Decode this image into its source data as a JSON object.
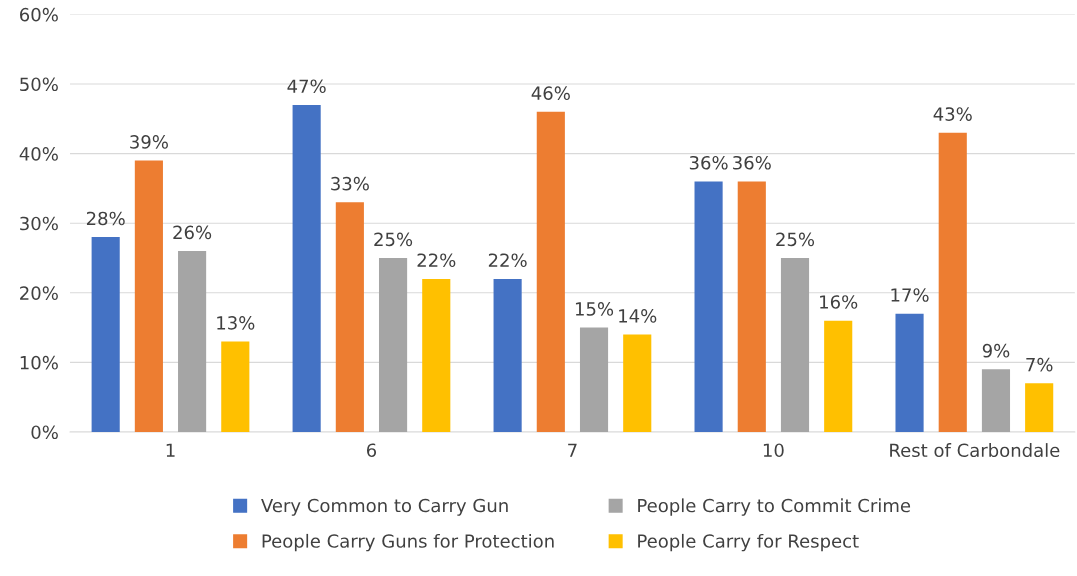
{
  "chart_data": {
    "type": "bar",
    "categories": [
      "1",
      "6",
      "7",
      "10",
      "Rest of Carbondale"
    ],
    "series": [
      {
        "name": "Very Common to Carry Gun",
        "color": "#4472c4",
        "values": [
          28,
          47,
          22,
          36,
          17
        ],
        "value_labels": [
          "28%",
          "47%",
          "22%",
          "36%",
          "17%"
        ]
      },
      {
        "name": "People Carry Guns for Protection",
        "color": "#ed7d31",
        "values": [
          39,
          33,
          46,
          36,
          43
        ],
        "value_labels": [
          "39%",
          "33%",
          "46%",
          "36%",
          "43%"
        ]
      },
      {
        "name": "People Carry to Commit Crime",
        "color": "#a5a5a5",
        "values": [
          26,
          25,
          15,
          25,
          9
        ],
        "value_labels": [
          "26%",
          "25%",
          "15%",
          "25%",
          "9%"
        ]
      },
      {
        "name": "People Carry for Respect",
        "color": "#ffc000",
        "values": [
          13,
          22,
          14,
          16,
          7
        ],
        "value_labels": [
          "13%",
          "22%",
          "14%",
          "16%",
          "7%"
        ]
      }
    ],
    "ylim": [
      0,
      60
    ],
    "yticks": [
      {
        "value": 0,
        "label": "0%"
      },
      {
        "value": 10,
        "label": "10%"
      },
      {
        "value": 20,
        "label": "20%"
      },
      {
        "value": 30,
        "label": "30%"
      },
      {
        "value": 40,
        "label": "40%"
      },
      {
        "value": 50,
        "label": "50%"
      },
      {
        "value": 60,
        "label": "60%"
      }
    ],
    "grid": "y",
    "legend": "bottom"
  }
}
